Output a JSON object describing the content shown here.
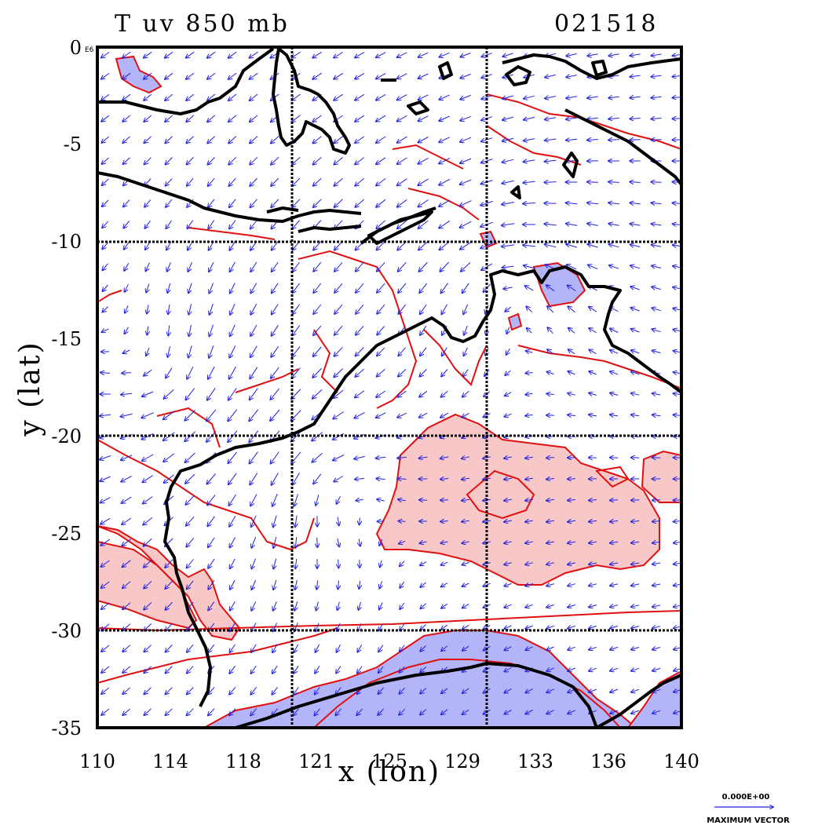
{
  "header": {
    "title": "T uv 850 mb",
    "date_code": "021518",
    "scale_tag": "E6"
  },
  "axes": {
    "xlabel": "x (lon)",
    "ylabel": "y (lat)",
    "x_ticks": [
      "110",
      "114",
      "118",
      "121",
      "125",
      "129",
      "133",
      "136",
      "140"
    ],
    "y_ticks": [
      "0",
      "-5",
      "-10",
      "-15",
      "-20",
      "-25",
      "-30",
      "-35"
    ],
    "lon_range": [
      110,
      140
    ],
    "lat_range": [
      -35,
      0
    ]
  },
  "legend": {
    "vector_value": "0.000E+00",
    "vector_label": "MAXIMUM VECTOR"
  },
  "colors": {
    "coastline": "#000000",
    "contour": "#e01010",
    "warm_fill": "#f8c8c8",
    "cold_fill": "#b4b4f8",
    "vector": "#2020e0",
    "grid": "#000000"
  },
  "map_layers": {
    "gridlines_lon": [
      120,
      130
    ],
    "gridlines_lat": [
      -10,
      -20,
      -30
    ],
    "warm_anomaly_regions": [
      "central Australia",
      "south-west Western Australia",
      "southern Northern Territory"
    ],
    "cold_anomaly_regions": [
      "Great Australian Bight",
      "Arnhem Land",
      "south-east",
      "north-west ocean"
    ]
  }
}
